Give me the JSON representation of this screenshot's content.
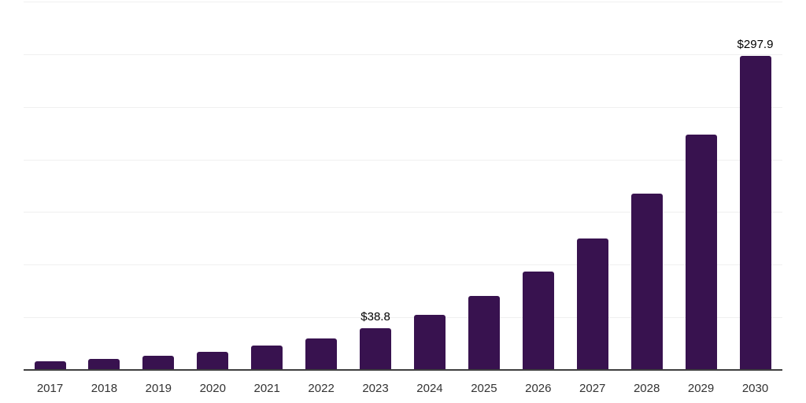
{
  "chart_data": {
    "type": "bar",
    "title": "",
    "xlabel": "",
    "ylabel": "",
    "categories": [
      "2017",
      "2018",
      "2019",
      "2020",
      "2021",
      "2022",
      "2023",
      "2024",
      "2025",
      "2026",
      "2027",
      "2028",
      "2029",
      "2030"
    ],
    "values": [
      7.5,
      9.9,
      12.8,
      16.5,
      22.3,
      29.0,
      38.8,
      51.9,
      69.5,
      93.0,
      124.5,
      166.6,
      223.0,
      297.9
    ],
    "value_labels": [
      "",
      "",
      "",
      "",
      "",
      "",
      "$38.8",
      "",
      "",
      "",
      "",
      "",
      "",
      "$297.9"
    ],
    "value_prefix": "$",
    "ylim": [
      0,
      350
    ],
    "gridline_step": 50,
    "grid": "horizontal",
    "y_tick_labels": "none",
    "legend_position": "none",
    "colors": {
      "bar": "#38124F",
      "axis_line": "#3F3F3F",
      "gridline": "#F0F0F0",
      "tick_label": "#333333",
      "value_label": "#000000",
      "background": "#FFFFFF"
    }
  }
}
